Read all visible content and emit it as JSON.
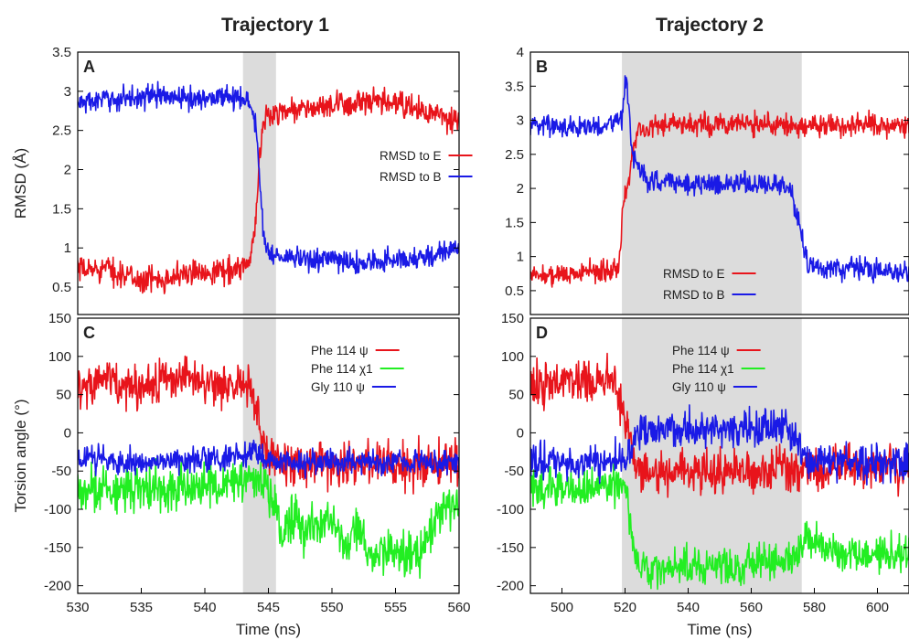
{
  "figure": {
    "column_titles": [
      "Trajectory 1",
      "Trajectory 2"
    ]
  },
  "chart_data": [
    {
      "panel": "A",
      "type": "line",
      "xlim": [
        530,
        560
      ],
      "ylim": [
        0.15,
        3.5
      ],
      "xticks": [],
      "xtick_labels": [],
      "yticks": [
        0.5,
        1,
        1.5,
        2,
        2.5,
        3,
        3.5
      ],
      "ytick_labels": [
        "0.5",
        "1",
        "1.5",
        "2",
        "2.5",
        "3",
        "3.5"
      ],
      "xlabel": "",
      "ylabel": "RMSD (Å)",
      "legend_position": "center-right",
      "shaded_region": [
        543,
        545.6
      ],
      "series": [
        {
          "name": "RMSD to E",
          "color": "#e8141b",
          "x": [
            530,
            532,
            535,
            538,
            540,
            542,
            543.5,
            544,
            544.3,
            544.6,
            545,
            546,
            548,
            550,
            552,
            555,
            558,
            560
          ],
          "y": [
            0.7,
            0.75,
            0.58,
            0.65,
            0.7,
            0.72,
            0.8,
            1.25,
            2.2,
            2.6,
            2.7,
            2.75,
            2.78,
            2.8,
            2.85,
            2.85,
            2.7,
            2.6
          ],
          "noise": 0.08
        },
        {
          "name": "RMSD to B",
          "color": "#1a1ae6",
          "x": [
            530,
            533,
            536,
            539,
            542,
            543.5,
            544,
            544.3,
            544.6,
            545,
            546,
            548,
            550,
            552,
            555,
            558,
            560
          ],
          "y": [
            2.85,
            2.9,
            2.95,
            2.9,
            2.95,
            2.85,
            2.6,
            1.9,
            1.2,
            0.95,
            0.88,
            0.85,
            0.85,
            0.8,
            0.85,
            0.9,
            1.0
          ],
          "noise": 0.07
        }
      ]
    },
    {
      "panel": "B",
      "type": "line",
      "xlim": [
        490,
        610
      ],
      "ylim": [
        0.15,
        4
      ],
      "xticks": [],
      "xtick_labels": [],
      "yticks": [
        0.5,
        1,
        1.5,
        2,
        2.5,
        3,
        3.5,
        4
      ],
      "ytick_labels": [
        "0.5",
        "1",
        "1.5",
        "2",
        "2.5",
        "3",
        "3.5",
        "4"
      ],
      "xlabel": "",
      "ylabel": "",
      "legend_position": "bottom-center",
      "shaded_region": [
        519,
        576
      ],
      "series": [
        {
          "name": "RMSD to E",
          "color": "#e8141b",
          "x": [
            490,
            505,
            515,
            518,
            519.5,
            521,
            523,
            525,
            540,
            560,
            580,
            600,
            610
          ],
          "y": [
            0.72,
            0.75,
            0.8,
            0.85,
            1.8,
            2.1,
            2.7,
            2.9,
            2.95,
            2.95,
            2.92,
            2.95,
            2.95
          ],
          "noise": 0.08
        },
        {
          "name": "RMSD to B",
          "color": "#1a1ae6",
          "x": [
            490,
            505,
            515,
            519,
            520.5,
            522,
            524,
            527,
            540,
            560,
            572,
            575,
            578,
            585,
            595,
            610
          ],
          "y": [
            2.95,
            2.9,
            2.95,
            3.0,
            3.7,
            2.6,
            2.3,
            2.1,
            2.08,
            2.08,
            2.05,
            1.5,
            0.85,
            0.8,
            0.85,
            0.75
          ],
          "noise": 0.08
        }
      ]
    },
    {
      "panel": "C",
      "type": "line",
      "xlim": [
        530,
        560
      ],
      "ylim": [
        -210,
        150
      ],
      "xticks": [
        530,
        535,
        540,
        545,
        550,
        555,
        560
      ],
      "xtick_labels": [
        "530",
        "535",
        "540",
        "545",
        "550",
        "555",
        "560"
      ],
      "yticks": [
        -200,
        -150,
        -100,
        -50,
        0,
        50,
        100,
        150
      ],
      "ytick_labels": [
        "-200",
        "-150",
        "-100",
        "-50",
        "0",
        "50",
        "100",
        "150"
      ],
      "xlabel": "Time (ns)",
      "ylabel": "Torsion angle (°)",
      "legend_position": "top-right",
      "shaded_region": [
        543,
        545.6
      ],
      "series": [
        {
          "name": "Phe 114 ψ",
          "color": "#e8141b",
          "x": [
            530,
            532,
            534,
            536,
            538,
            540,
            542,
            543.5,
            544,
            544.5,
            545,
            546,
            550,
            555,
            560
          ],
          "y": [
            60,
            70,
            60,
            62,
            75,
            60,
            65,
            62,
            40,
            0,
            -30,
            -38,
            -40,
            -42,
            -40
          ],
          "noise": 14
        },
        {
          "name": "Phe 114 χ1",
          "color": "#22ee22",
          "x": [
            530,
            535,
            540,
            543,
            544.5,
            545.5,
            546,
            547,
            548,
            550,
            551,
            552,
            553,
            555,
            556,
            557,
            558,
            559,
            560
          ],
          "y": [
            -75,
            -72,
            -70,
            -65,
            -60,
            -90,
            -140,
            -110,
            -130,
            -110,
            -150,
            -120,
            -160,
            -150,
            -165,
            -160,
            -120,
            -90,
            -95
          ],
          "noise": 14
        },
        {
          "name": "Gly 110 ψ",
          "color": "#1a1ae6",
          "x": [
            530,
            535,
            540,
            543,
            544,
            545,
            550,
            555,
            560
          ],
          "y": [
            -35,
            -38,
            -35,
            -30,
            -20,
            -38,
            -38,
            -40,
            -38
          ],
          "noise": 8
        }
      ]
    },
    {
      "panel": "D",
      "type": "line",
      "xlim": [
        490,
        610
      ],
      "ylim": [
        -210,
        150
      ],
      "xticks": [
        500,
        520,
        540,
        560,
        580,
        600
      ],
      "xtick_labels": [
        "500",
        "520",
        "540",
        "560",
        "580",
        "600"
      ],
      "yticks": [
        -200,
        -150,
        -100,
        -50,
        0,
        50,
        100,
        150
      ],
      "ytick_labels": [
        "-200",
        "-150",
        "-100",
        "-50",
        "0",
        "50",
        "100",
        "150"
      ],
      "xlabel": "Time (ns)",
      "ylabel": "",
      "legend_position": "top-center",
      "shaded_region": [
        519,
        576
      ],
      "series": [
        {
          "name": "Phe 114 ψ",
          "color": "#e8141b",
          "x": [
            490,
            500,
            510,
            515,
            518,
            520,
            522,
            524,
            530,
            550,
            570,
            580,
            600,
            610
          ],
          "y": [
            60,
            65,
            70,
            75,
            50,
            20,
            -20,
            -45,
            -50,
            -50,
            -48,
            -45,
            -45,
            -42
          ],
          "noise": 14
        },
        {
          "name": "Phe 114 χ1",
          "color": "#22ee22",
          "x": [
            490,
            505,
            515,
            520,
            522,
            524,
            530,
            550,
            570,
            576,
            578,
            585,
            595,
            610
          ],
          "y": [
            -70,
            -72,
            -68,
            -70,
            -130,
            -170,
            -175,
            -172,
            -170,
            -150,
            -130,
            -155,
            -160,
            -160
          ],
          "noise": 12
        },
        {
          "name": "Gly 110 ψ",
          "color": "#1a1ae6",
          "x": [
            490,
            505,
            515,
            520,
            522,
            524,
            530,
            550,
            570,
            574,
            577,
            585,
            600,
            610
          ],
          "y": [
            -38,
            -40,
            -38,
            -35,
            -20,
            0,
            5,
            5,
            5,
            -10,
            -35,
            -38,
            -38,
            -38
          ],
          "noise": 12
        }
      ]
    }
  ]
}
